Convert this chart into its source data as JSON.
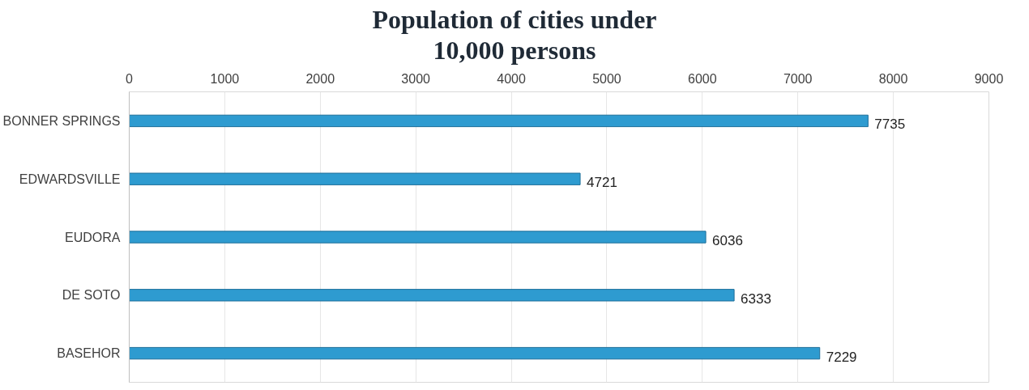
{
  "chart_data": {
    "type": "bar",
    "orientation": "horizontal",
    "title": "Population of cities under 10,000 persons",
    "categories": [
      "BONNER SPRINGS",
      "EDWARDSVILLE",
      "EUDORA",
      "DE SOTO",
      "BASEHOR"
    ],
    "values": [
      7735,
      4721,
      6036,
      6333,
      7229
    ],
    "color": "#2e9bd0",
    "xlim": [
      0,
      9000
    ],
    "xticks": [
      0,
      1000,
      2000,
      3000,
      4000,
      5000,
      6000,
      7000,
      8000,
      9000
    ],
    "grid": "x",
    "data_labels": true
  }
}
